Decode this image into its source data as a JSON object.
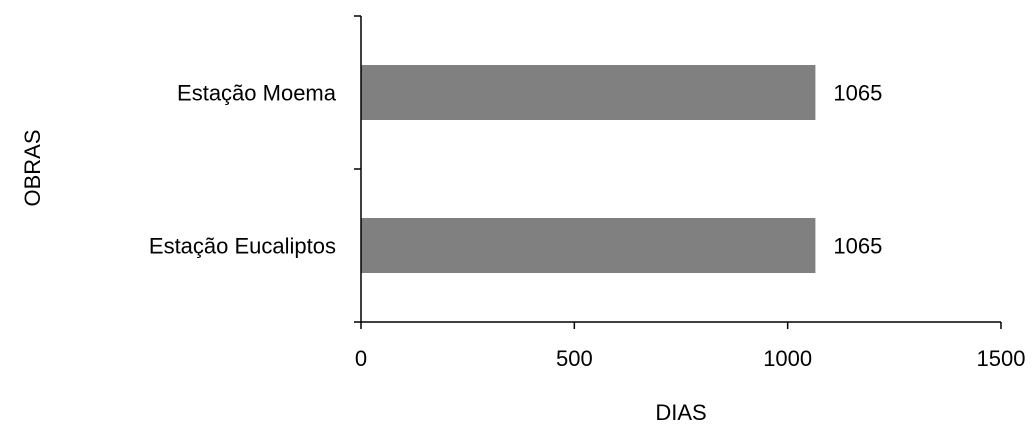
{
  "chart_data": {
    "type": "bar",
    "orientation": "horizontal",
    "categories": [
      "Estação Moema",
      "Estação Eucaliptos"
    ],
    "values": [
      1065,
      1065
    ],
    "data_labels": [
      "1065",
      "1065"
    ],
    "title": "",
    "xlabel": "DIAS",
    "ylabel": "OBRAS",
    "xlim": [
      0,
      1500
    ],
    "xticks": [
      0,
      500,
      1000,
      1500
    ],
    "xtick_labels": [
      "0",
      "500",
      "1000",
      "1500"
    ],
    "bar_color": "#808080",
    "grid": false,
    "legend": "none"
  }
}
